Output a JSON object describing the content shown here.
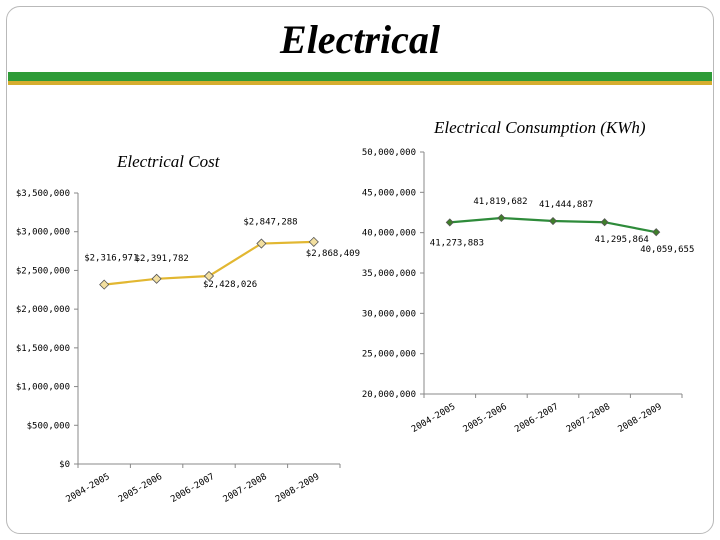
{
  "page": {
    "title": "Electrical"
  },
  "chart_data": [
    {
      "type": "line",
      "title": "Electrical Cost",
      "categories": [
        "2004-2005",
        "2005-2006",
        "2006-2007",
        "2007-2008",
        "2008-2009"
      ],
      "values": [
        2316971,
        2391782,
        2428026,
        2847288,
        2868409
      ],
      "data_labels": [
        "$2,316,971",
        "$2,391,782",
        "$2,428,026",
        "$2,847,288",
        "$2,868,409"
      ],
      "ylim": [
        0,
        3500000
      ],
      "yticks": [
        "$0",
        "$500,000",
        "$1,000,000",
        "$1,500,000",
        "$2,000,000",
        "$2,500,000",
        "$3,000,000",
        "$3,500,000"
      ],
      "line_color": "#e2b731",
      "marker_color": "#f2dfa0",
      "grid": false
    },
    {
      "type": "line",
      "title": "Electrical Consumption (KWh)",
      "categories": [
        "2004-2005",
        "2005-2006",
        "2006-2007",
        "2007-2008",
        "2008-2009"
      ],
      "values": [
        41273883,
        41819682,
        41444887,
        41295864,
        40059655
      ],
      "data_labels": [
        "41,273,883",
        "41,819,682",
        "41,444,887",
        "41,295,864",
        "40,059,655"
      ],
      "ylim": [
        20000000,
        50000000
      ],
      "yticks": [
        "20,000,000",
        "25,000,000",
        "30,000,000",
        "35,000,000",
        "40,000,000",
        "45,000,000",
        "50,000,000"
      ],
      "line_color": "#2e8b3a",
      "marker_color": "#3f7f2a",
      "grid": false
    }
  ]
}
